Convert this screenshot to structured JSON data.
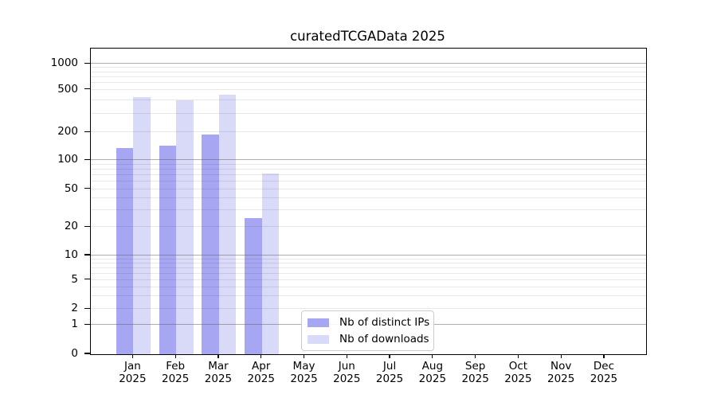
{
  "chart_data": {
    "type": "bar",
    "title": "curatedTCGAData 2025",
    "xlabel": "",
    "ylabel": "",
    "scale": "log-like (0,1,2,5,10,20,50,100,200,500,1000)",
    "grid": "horizontal, major gray at powers of 10, faint minors",
    "legend_position": "inside bottom-center",
    "categories": [
      "Jan",
      "Feb",
      "Mar",
      "Apr",
      "May",
      "Jun",
      "Jul",
      "Aug",
      "Sep",
      "Oct",
      "Nov",
      "Dec"
    ],
    "year_label": "2025",
    "yticks": [
      0,
      1,
      2,
      5,
      10,
      20,
      50,
      100,
      200,
      500,
      1000
    ],
    "series": [
      {
        "name": "Nb of distinct IPs",
        "color": "#a6a6f2",
        "values": [
          135,
          145,
          190,
          25,
          0,
          0,
          0,
          0,
          0,
          0,
          0,
          0
        ]
      },
      {
        "name": "Nb of downloads",
        "color": "#d9d9f8",
        "values": [
          425,
          395,
          450,
          73,
          0,
          0,
          0,
          0,
          0,
          0,
          0,
          0
        ]
      }
    ]
  }
}
